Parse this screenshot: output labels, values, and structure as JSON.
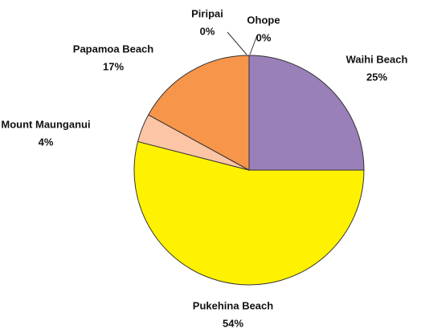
{
  "chart_data": {
    "type": "pie",
    "categories": [
      "Waihi Beach",
      "Pukehina Beach",
      "Mount Maunganui",
      "Papamoa Beach",
      "Piripai",
      "Ohope"
    ],
    "values": [
      25,
      54,
      4,
      17,
      0,
      0
    ],
    "value_labels": [
      "25%",
      "54%",
      "4%",
      "17%",
      "0%",
      "0%"
    ],
    "colors": [
      "#9980b9",
      "#fff200",
      "#fcc5a6",
      "#f7954a",
      "#ffffff",
      "#ffffff"
    ]
  }
}
